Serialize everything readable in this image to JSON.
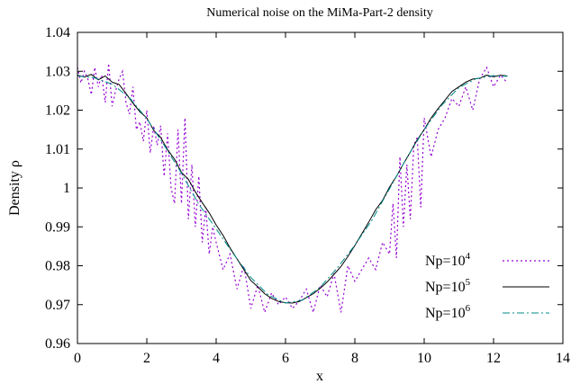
{
  "chart_data": {
    "type": "line",
    "title": "Numerical noise on the MiMa-Part-2 density",
    "xlabel": "x",
    "ylabel": "Density ρ",
    "xlim": [
      0,
      14
    ],
    "ylim": [
      0.96,
      1.04
    ],
    "xticks": [
      "0",
      "2",
      "4",
      "6",
      "8",
      "10",
      "12",
      "14"
    ],
    "yticks": [
      "0.96",
      "0.97",
      "0.98",
      "0.99",
      "1",
      "1.01",
      "1.02",
      "1.03",
      "1.04"
    ],
    "grid": false,
    "legend_position": "bottom-right",
    "series": [
      {
        "name": "Np=10^4",
        "legend_base": "Np=10",
        "legend_exp": "4",
        "color": "#9400d3",
        "style": "dotted",
        "x": [
          0,
          0.1,
          0.2,
          0.3,
          0.4,
          0.5,
          0.6,
          0.7,
          0.8,
          0.9,
          1.0,
          1.1,
          1.2,
          1.3,
          1.4,
          1.5,
          1.6,
          1.7,
          1.8,
          1.9,
          2.0,
          2.1,
          2.2,
          2.3,
          2.4,
          2.5,
          2.6,
          2.7,
          2.8,
          2.9,
          3.0,
          3.1,
          3.2,
          3.3,
          3.4,
          3.5,
          3.6,
          3.7,
          3.8,
          3.9,
          4.0,
          4.2,
          4.4,
          4.6,
          4.8,
          5.0,
          5.2,
          5.4,
          5.6,
          5.8,
          6.0,
          6.2,
          6.4,
          6.6,
          6.8,
          7.0,
          7.2,
          7.4,
          7.6,
          7.8,
          8.0,
          8.2,
          8.4,
          8.6,
          8.8,
          9.0,
          9.1,
          9.2,
          9.3,
          9.4,
          9.5,
          9.6,
          9.7,
          9.8,
          9.9,
          10.0,
          10.2,
          10.4,
          10.6,
          10.8,
          11.0,
          11.2,
          11.4,
          11.6,
          11.8,
          12.0,
          12.2,
          12.4
        ],
        "y": [
          1.031,
          1.027,
          1.03,
          1.028,
          1.024,
          1.031,
          1.026,
          1.029,
          1.022,
          1.032,
          1.021,
          1.025,
          1.028,
          1.03,
          1.022,
          1.019,
          1.026,
          1.015,
          1.017,
          1.012,
          1.02,
          1.009,
          1.016,
          1.011,
          1.016,
          1.003,
          1.014,
          1.0,
          0.996,
          1.015,
          0.996,
          1.018,
          0.992,
          1.006,
          0.99,
          1.003,
          0.986,
          0.995,
          0.983,
          0.99,
          0.986,
          0.979,
          0.983,
          0.974,
          0.98,
          0.969,
          0.975,
          0.968,
          0.973,
          0.97,
          0.972,
          0.969,
          0.971,
          0.974,
          0.968,
          0.975,
          0.972,
          0.978,
          0.968,
          0.98,
          0.976,
          0.979,
          0.982,
          0.979,
          0.986,
          0.983,
          0.996,
          0.982,
          1.008,
          0.99,
          1.006,
          0.992,
          1.011,
          1.013,
          0.995,
          1.018,
          1.008,
          1.015,
          1.018,
          1.023,
          1.021,
          1.026,
          1.02,
          1.028,
          1.031,
          1.026,
          1.029,
          1.027
        ]
      },
      {
        "name": "Np=10^5",
        "legend_base": "Np=10",
        "legend_exp": "5",
        "color": "#000000",
        "style": "solid",
        "x": [
          0,
          0.2,
          0.4,
          0.6,
          0.8,
          1.0,
          1.2,
          1.4,
          1.6,
          1.8,
          2.0,
          2.2,
          2.4,
          2.6,
          2.8,
          3.0,
          3.2,
          3.4,
          3.6,
          3.8,
          4.0,
          4.2,
          4.4,
          4.6,
          4.8,
          5.0,
          5.2,
          5.4,
          5.6,
          5.8,
          6.0,
          6.2,
          6.4,
          6.6,
          6.8,
          7.0,
          7.2,
          7.4,
          7.6,
          7.8,
          8.0,
          8.2,
          8.4,
          8.6,
          8.8,
          9.0,
          9.2,
          9.4,
          9.6,
          9.8,
          10.0,
          10.2,
          10.4,
          10.6,
          10.8,
          11.0,
          11.2,
          11.4,
          11.6,
          11.8,
          12.0,
          12.2,
          12.4
        ],
        "y": [
          1.029,
          1.0285,
          1.0292,
          1.0278,
          1.0288,
          1.0272,
          1.0266,
          1.0243,
          1.0218,
          1.0196,
          1.018,
          1.0148,
          1.013,
          1.0098,
          1.0074,
          1.004,
          1.0022,
          0.999,
          0.9962,
          0.9936,
          0.9905,
          0.9878,
          0.9846,
          0.9818,
          0.979,
          0.9762,
          0.9746,
          0.9728,
          0.9716,
          0.9708,
          0.9705,
          0.9704,
          0.9708,
          0.9718,
          0.9728,
          0.9742,
          0.9758,
          0.9778,
          0.9798,
          0.9824,
          0.9852,
          0.9882,
          0.9912,
          0.9944,
          0.9968,
          1.0002,
          1.003,
          1.0062,
          1.0092,
          1.0124,
          1.015,
          1.018,
          1.0204,
          1.0226,
          1.0248,
          1.026,
          1.0272,
          1.028,
          1.0282,
          1.029,
          1.0286,
          1.029,
          1.0288
        ]
      },
      {
        "name": "Np=10^6",
        "legend_base": "Np=10",
        "legend_exp": "6",
        "color": "#008b8b",
        "style": "dash-dot",
        "x": [
          0,
          0.5,
          1.0,
          1.5,
          2.0,
          2.5,
          3.0,
          3.5,
          4.0,
          4.5,
          5.0,
          5.5,
          6.0,
          6.5,
          7.0,
          7.5,
          8.0,
          8.5,
          9.0,
          9.5,
          10.0,
          10.5,
          11.0,
          11.5,
          12.0,
          12.4
        ],
        "y": [
          1.0288,
          1.0283,
          1.0267,
          1.0232,
          1.0178,
          1.011,
          1.0038,
          0.9958,
          0.9895,
          0.983,
          0.977,
          0.9725,
          0.9704,
          0.9712,
          0.9745,
          0.9795,
          0.9853,
          0.9918,
          0.9998,
          1.0078,
          1.015,
          1.0212,
          1.0258,
          1.0281,
          1.0289,
          1.0287
        ]
      }
    ]
  }
}
